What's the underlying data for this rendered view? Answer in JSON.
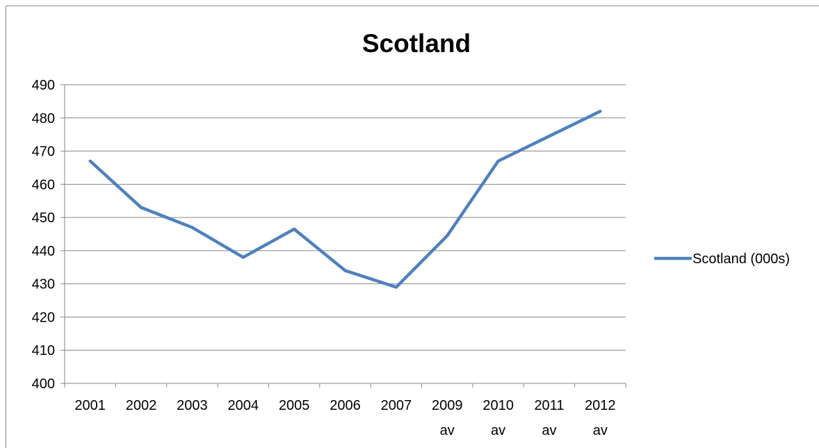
{
  "colors": {
    "series": "#4f81bd",
    "grid": "#868686",
    "axis": "#868686",
    "text": "#000000",
    "background": "#ffffff"
  },
  "chart_data": {
    "type": "line",
    "title": "Scotland",
    "xlabel": "",
    "ylabel": "",
    "ylim": [
      400,
      490
    ],
    "ytick_step": 10,
    "grid": "horizontal",
    "legend_position": "right",
    "categories": [
      [
        "2001"
      ],
      [
        "2002"
      ],
      [
        "2003"
      ],
      [
        "2004"
      ],
      [
        "2005"
      ],
      [
        "2006"
      ],
      [
        "2007"
      ],
      [
        "2009",
        "av"
      ],
      [
        "2010",
        "av"
      ],
      [
        "2011",
        "av"
      ],
      [
        "2012",
        "av"
      ]
    ],
    "series": [
      {
        "name": "Scotland (000s)",
        "values": [
          467,
          453,
          447,
          438,
          446.5,
          434,
          429,
          444.5,
          467,
          474.5,
          482
        ]
      }
    ]
  }
}
